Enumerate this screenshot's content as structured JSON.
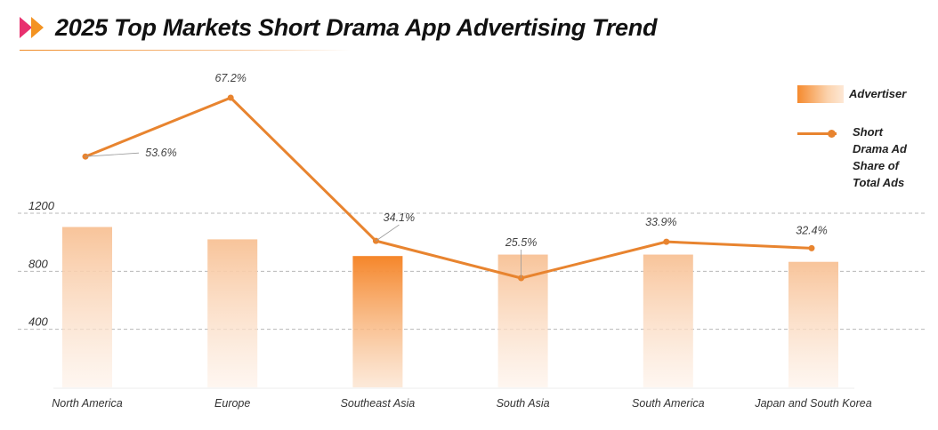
{
  "header": {
    "title": "2025 Top Markets Short Drama App Advertising Trend"
  },
  "colors": {
    "accent": "#e8842f",
    "bar_light": "#f8c79e",
    "bar_highlight": "#f58a2e",
    "logo_pink": "#e8306e",
    "logo_orange": "#f39322",
    "grid": "#b8b8b8"
  },
  "chart_data": {
    "type": "bar",
    "categories": [
      "North America",
      "Europe",
      "Southeast Asia",
      "South Asia",
      "South America",
      "Japan and South Korea"
    ],
    "y_ticks": [
      "400",
      "800",
      "1200"
    ],
    "ylim": [
      0,
      1200
    ],
    "grid": true,
    "legend_position": "top-right",
    "highlight_index": 2,
    "series": [
      {
        "name": "Advertiser",
        "type": "bar",
        "values": [
          1105,
          1020,
          905,
          915,
          915,
          865
        ]
      },
      {
        "name": "Short Drama Ad Share of Total Ads",
        "type": "line",
        "values": [
          53.6,
          67.2,
          34.1,
          25.5,
          33.9,
          32.4
        ],
        "labels": [
          "53.6%",
          "67.2%",
          "34.1%",
          "25.5%",
          "33.9%",
          "32.4%"
        ]
      }
    ]
  }
}
